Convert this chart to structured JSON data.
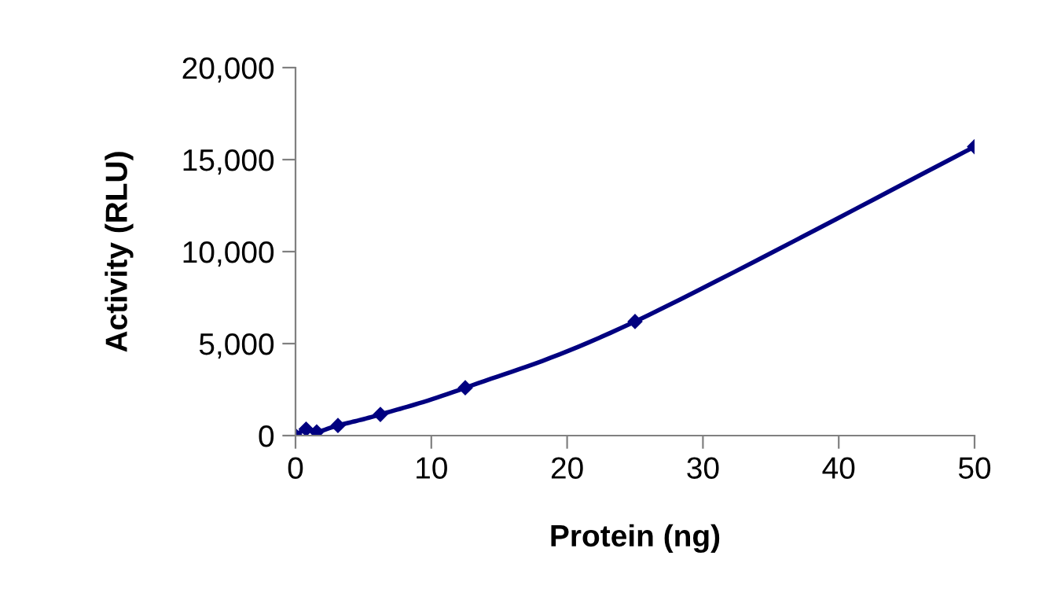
{
  "chart_data": {
    "type": "line",
    "xlabel": "Protein (ng)",
    "ylabel": "Activity (RLU)",
    "x": [
      0,
      0.78,
      1.56,
      3.125,
      6.25,
      12.5,
      25,
      50
    ],
    "series": [
      {
        "color": "#000080",
        "values": [
          0,
          350,
          200,
          550,
          1150,
          2600,
          6200,
          15700
        ]
      }
    ],
    "xlim": [
      0,
      50
    ],
    "xticks": [
      0,
      10,
      20,
      30,
      40,
      50
    ],
    "ylim": [
      0,
      20000
    ],
    "yticks": [
      {
        "value": 0,
        "label": "0"
      },
      {
        "value": 5000,
        "label": "5,000"
      },
      {
        "value": 10000,
        "label": "10,000"
      },
      {
        "value": 15000,
        "label": "15,000"
      },
      {
        "value": 20000,
        "label": "20,000"
      }
    ],
    "marker": "diamond",
    "line_style": "solid",
    "grid": false,
    "legend": false
  }
}
